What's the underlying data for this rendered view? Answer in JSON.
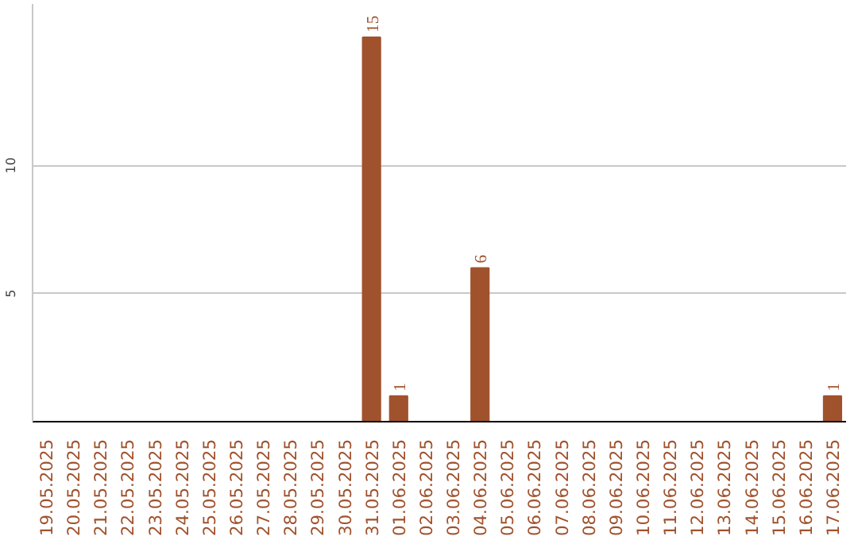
{
  "chart_data": {
    "type": "bar",
    "categories": [
      "19.05.2025",
      "20.05.2025",
      "21.05.2025",
      "22.05.2025",
      "23.05.2025",
      "24.05.2025",
      "25.05.2025",
      "26.05.2025",
      "27.05.2025",
      "28.05.2025",
      "29.05.2025",
      "30.05.2025",
      "31.05.2025",
      "01.06.2025",
      "02.06.2025",
      "03.06.2025",
      "04.06.2025",
      "05.06.2025",
      "06.06.2025",
      "07.06.2025",
      "08.06.2025",
      "09.06.2025",
      "10.06.2025",
      "11.06.2025",
      "12.06.2025",
      "13.06.2025",
      "14.06.2025",
      "15.06.2025",
      "16.06.2025",
      "17.06.2025"
    ],
    "values": [
      0,
      0,
      0,
      0,
      0,
      0,
      0,
      0,
      0,
      0,
      0,
      0,
      15,
      1,
      0,
      0,
      6,
      0,
      0,
      0,
      0,
      0,
      0,
      0,
      0,
      0,
      0,
      0,
      0,
      1
    ],
    "value_labels": [
      null,
      null,
      null,
      null,
      null,
      null,
      null,
      null,
      null,
      null,
      null,
      null,
      "15",
      "1",
      null,
      null,
      "6",
      null,
      null,
      null,
      null,
      null,
      null,
      null,
      null,
      null,
      null,
      null,
      null,
      "1"
    ],
    "color": "#a0522d",
    "ylim": [
      0,
      16.3
    ],
    "yticks": [
      5,
      10
    ],
    "grid": "y"
  }
}
